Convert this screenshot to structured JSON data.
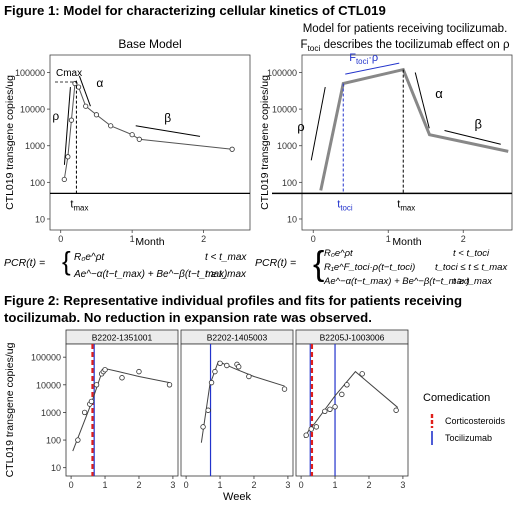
{
  "figure1": {
    "title": "Figure 1: Model for characterizing cellular kinetics of CTL019",
    "panel_a": {
      "title": "Base Model",
      "ylabel": "CTL019 transgene copies/ug",
      "xlabel": "Month",
      "yticks": [
        "10",
        "100",
        "1000",
        "10000",
        "100000"
      ],
      "xticks": [
        "0",
        "1",
        "2"
      ],
      "annotations": {
        "cmax": "Cmax",
        "rho": "ρ",
        "alpha": "α",
        "beta": "β",
        "tmax": "t",
        "tmax_sub": "max"
      },
      "chart_data": {
        "type": "scatter",
        "series": [
          {
            "x": [
              0.05,
              0.1,
              0.15,
              0.2,
              0.25,
              0.35,
              0.5,
              0.7,
              1.0,
              1.1,
              2.4
            ],
            "y": [
              120,
              500,
              5000,
              50000,
              40000,
              12000,
              7000,
              3500,
              2000,
              1500,
              800
            ]
          }
        ],
        "tmax": 0.22,
        "limit_line": 50,
        "xlim": [
          -0.15,
          2.65
        ],
        "ylim": [
          5,
          300000
        ],
        "yscale": "log"
      },
      "equation": {
        "lhs": "PCR(t) =",
        "row1_expr": "R₀e^ρt",
        "row1_cond": "t < t_max",
        "row2_expr": "Ae^−α(t−t_max) + Be^−β(t−t_max)",
        "row2_cond": "t ≥ t_max"
      }
    },
    "panel_b": {
      "title_line1": "Model for patients receiving tocilizumab.",
      "title_line2": "F_toci describes the tocilizumab effect on ρ",
      "title_f": "F",
      "title_sub": "toci",
      "title_rest": " describes the tocilizumab effect on ρ",
      "ylabel": "CTL019 transgene copies/ug",
      "xlabel": "Month",
      "yticks": [
        "10",
        "100",
        "1000",
        "10000",
        "100000"
      ],
      "xticks": [
        "0",
        "1",
        "2"
      ],
      "annotations": {
        "ftoci": "F",
        "ftoci_sub": "toci",
        "ftoci_rest": "·ρ",
        "rho": "ρ",
        "alpha": "α",
        "beta": "β",
        "ttoci": "t",
        "ttoci_sub": "toci",
        "tmax": "t",
        "tmax_sub": "max"
      },
      "chart_data": {
        "type": "line",
        "series": [
          {
            "x": [
              0.1,
              0.4,
              1.2,
              1.55,
              2.6
            ],
            "y": [
              60,
              50000,
              120000,
              2000,
              700
            ]
          }
        ],
        "ttoci": 0.4,
        "tmax": 1.2,
        "limit_line": 50,
        "xlim": [
          -0.15,
          2.65
        ],
        "ylim": [
          5,
          300000
        ],
        "yscale": "log"
      },
      "equation": {
        "lhs": "PCR(t) =",
        "row1_expr": "R₀e^ρt",
        "row1_cond": "t < t_toci",
        "row2_expr": "R₁e^F_toci·ρ(t−t_toci)",
        "row2_cond": "t_toci ≤ t ≤ t_max",
        "row3_expr": "Ae^−α(t−t_max) + Be^−β(t−t_max)",
        "row3_cond": "t ≥ t_max"
      }
    }
  },
  "figure2": {
    "title_line1": "Figure 2: Representative individual profiles and fits for patients receiving",
    "title_line2": "tocilizumab.  No reduction in expansion rate was observed.",
    "ylabel": "CTL019 transgene copies/ug",
    "xlabel": "Week",
    "yticks": [
      "10",
      "100",
      "1000",
      "10000",
      "100000"
    ],
    "xticks": [
      "0",
      "1",
      "2",
      "3"
    ],
    "legend": {
      "title": "Comedication",
      "items": [
        {
          "label": "Corticosteroids",
          "color": "#e0201b",
          "style": "dashed"
        },
        {
          "label": "Tocilizumab",
          "color": "#2233cc",
          "style": "solid"
        }
      ]
    },
    "chart_data": [
      {
        "type": "scatter",
        "strip": "B2202-1351001",
        "points": {
          "x": [
            0.2,
            0.4,
            0.55,
            0.6,
            0.75,
            0.9,
            0.95,
            1.0,
            1.5,
            2.0,
            2.9
          ],
          "y": [
            100,
            1000,
            2000,
            2500,
            10000,
            25000,
            30000,
            35000,
            18000,
            30000,
            10000
          ]
        },
        "fit": {
          "x": [
            0.05,
            0.6,
            0.95,
            1.4,
            2.0,
            2.9
          ],
          "y": [
            40,
            2200,
            40000,
            30000,
            20000,
            12000
          ]
        },
        "tocilizumab": [
          0.68
        ],
        "corticosteroids": [
          0.63
        ],
        "xlim": [
          -0.15,
          3.15
        ],
        "ylim": [
          5,
          300000
        ],
        "yscale": "log"
      },
      {
        "type": "scatter",
        "strip": "B2202-1405003",
        "points": {
          "x": [
            0.5,
            0.65,
            0.75,
            0.85,
            1.0,
            1.2,
            1.5,
            1.55,
            1.85,
            2.9
          ],
          "y": [
            300,
            1200,
            12000,
            30000,
            60000,
            50000,
            55000,
            45000,
            20000,
            7000
          ]
        },
        "fit": {
          "x": [
            0.45,
            0.7,
            0.95,
            1.4,
            2.0,
            2.9
          ],
          "y": [
            80,
            10000,
            70000,
            40000,
            20000,
            9000
          ]
        },
        "tocilizumab": [
          0.72
        ],
        "corticosteroids": [],
        "xlim": [
          -0.15,
          3.15
        ],
        "ylim": [
          5,
          300000
        ],
        "yscale": "log"
      },
      {
        "type": "scatter",
        "strip": "B2205J-1003006",
        "points": {
          "x": [
            0.15,
            0.3,
            0.45,
            0.7,
            0.85,
            1.0,
            1.2,
            1.35,
            1.8,
            2.8
          ],
          "y": [
            150,
            250,
            300,
            1100,
            1300,
            1600,
            4500,
            10000,
            25000,
            1200
          ]
        },
        "fit": {
          "x": [
            0.1,
            0.25,
            0.4,
            1.0,
            1.6,
            2.85
          ],
          "y": [
            120,
            250,
            400,
            4000,
            30000,
            1500
          ]
        },
        "tocilizumab": [
          0.27,
          1.0
        ],
        "corticosteroids": [
          0.32
        ],
        "xlim": [
          -0.15,
          3.15
        ],
        "ylim": [
          5,
          300000
        ],
        "yscale": "log"
      }
    ]
  }
}
